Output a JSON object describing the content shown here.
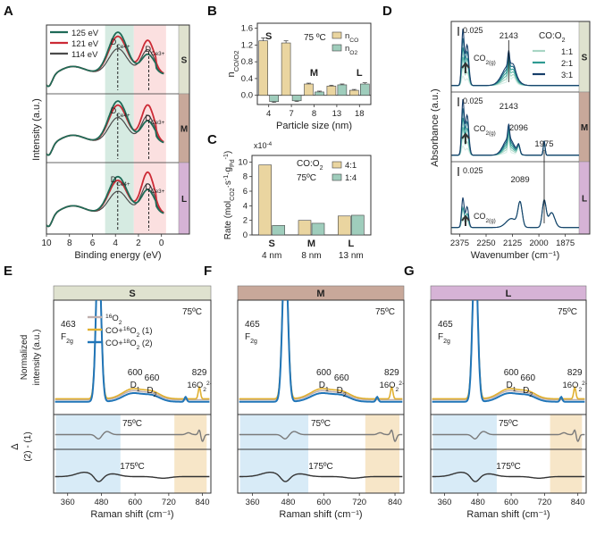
{
  "panels": [
    "A",
    "B",
    "C",
    "D",
    "E",
    "F",
    "G"
  ],
  "colors": {
    "dark_green": "#1f6b57",
    "red": "#cc2a35",
    "gray": "#4a4a4a",
    "tan": "#ead5a0",
    "mint": "#9fcdbc",
    "bar_edge": "#444444",
    "size_S": "#dfe2cf",
    "size_M": "#c8a89a",
    "size_L": "#d6b3d6",
    "shade_green": "#d6ebe2",
    "shade_pink": "#fbe0e0",
    "shade_blue": "#d8ebf7",
    "shade_orange": "#f7e6c8",
    "raman_gray": "#c0b0ae",
    "raman_gold": "#e0b030",
    "raman_blue": "#2075b8"
  },
  "chart_data": [
    {
      "id": "A",
      "type": "line",
      "xlabel": "Binding energy (eV)",
      "ylabel": "Intensity (a.u.)",
      "xticks": [
        10,
        8,
        6,
        4,
        2,
        0
      ],
      "series": [
        {
          "name": "125 eV",
          "color": "#1f6b57"
        },
        {
          "name": "121 eV",
          "color": "#cc2a35"
        },
        {
          "name": "114 eV",
          "color": "#4a4a4a"
        }
      ],
      "rows": [
        "S",
        "M",
        "L"
      ],
      "peak_labels": [
        {
          "main": "D",
          "sub": "Ce4+"
        },
        {
          "main": "D",
          "sub": "Ce3+"
        }
      ]
    },
    {
      "id": "B",
      "type": "bar",
      "xlabel": "Particle size (nm)",
      "ylabel_main": "n",
      "ylabel_sub": "CO/O2",
      "categories": [
        "4",
        "7",
        "8",
        "13",
        "18"
      ],
      "category_group": [
        "S",
        "S",
        "M",
        "L",
        "L"
      ],
      "series": [
        {
          "name": "n_CO",
          "main": "n",
          "sub": "CO",
          "values": [
            1.3,
            1.25,
            0.27,
            0.22,
            0.12
          ],
          "errors": [
            0.07,
            0.05,
            0.02,
            0.02,
            0.02
          ],
          "color": "#ead5a0"
        },
        {
          "name": "n_O2",
          "main": "n",
          "sub": "O2",
          "values": [
            -0.15,
            -0.13,
            0.08,
            0.25,
            0.27
          ],
          "errors": [
            0.02,
            0.02,
            0.02,
            0.02,
            0.03
          ],
          "color": "#9fcdbc"
        }
      ],
      "yticks": [
        "1.6",
        "1.2",
        "0.8",
        "0.4",
        "0.0"
      ],
      "ylim": [
        -0.22,
        1.72
      ],
      "group_labels": [
        {
          "text": "S",
          "category": "4"
        },
        {
          "text": "M",
          "category": "8"
        },
        {
          "text": "L",
          "category": "18"
        }
      ],
      "annotation": "75 ºC"
    },
    {
      "id": "C",
      "type": "bar",
      "ylabel": "Rate (mol",
      "ylabel_sub1": "CO2",
      "ylabel_mid": "·s",
      "ylabel_sup1": "-1",
      "ylabel_mid2": "·g",
      "ylabel_sub2": "Pd",
      "ylabel_sup2": "-1",
      "ylabel_end": ")",
      "exponent_label": "x10",
      "exponent_sup": "-4",
      "categories": [
        "S",
        "M",
        "L"
      ],
      "subcategories": [
        "4 nm",
        "8 nm",
        "13 nm"
      ],
      "series": [
        {
          "name": "4:1",
          "values": [
            9.6,
            2.0,
            2.6
          ],
          "color": "#ead5a0"
        },
        {
          "name": "1:4",
          "values": [
            1.3,
            1.6,
            2.7
          ],
          "color": "#9fcdbc"
        }
      ],
      "yticks": [
        "10",
        "8",
        "6",
        "4",
        "2",
        "0"
      ],
      "ylim": [
        0,
        10.9
      ],
      "legend_title": "CO:O",
      "legend_title_sub": "2",
      "annotation": "75ºC"
    },
    {
      "id": "D",
      "type": "line",
      "xlabel": "Wavenumber (cm⁻¹)",
      "ylabel": "Absorbance (a.u.)",
      "xticks": [
        "2375",
        "2250",
        "2125",
        "2000",
        "1875"
      ],
      "scale_label": "0.025",
      "legend_title": "CO:O",
      "legend_title_sub": "2",
      "series": [
        {
          "name": "1:1",
          "color": "#a8d5c4"
        },
        {
          "name": "2:1",
          "color": "#2f9a92"
        },
        {
          "name": "3:1",
          "color": "#173e6a"
        }
      ],
      "rows": [
        "S",
        "M",
        "L"
      ],
      "peak_labels_S": [
        "2143"
      ],
      "peak_labels_M": [
        "2143",
        "2096",
        "1975"
      ],
      "peak_labels_L": [
        "2089"
      ],
      "co2_label_main": "CO",
      "co2_label_sub": "2(g)"
    },
    {
      "id": "E",
      "type": "line",
      "sample": "S",
      "xlabel": "Raman shift (cm⁻¹)",
      "ylabel_top": "Normalized",
      "ylabel_bottom": "intensity (a.u.)",
      "diff_ylabel": "Δ",
      "diff_ylabel2": "(2) - (1)",
      "xticks": [
        "360",
        "480",
        "600",
        "720",
        "840"
      ],
      "series": [
        {
          "name": "16O2",
          "color": "#c0b0ae"
        },
        {
          "name": "CO+16O2 (1)",
          "color": "#e0b030"
        },
        {
          "name": "CO+18O2 (2)",
          "color": "#2075b8"
        }
      ],
      "peaks": [
        [
          "463",
          "F2g"
        ],
        [
          "600",
          "D1"
        ],
        [
          "660",
          "D2"
        ],
        [
          "829",
          "16O22-"
        ]
      ],
      "temps": [
        "75ºC",
        "75ºC",
        "175ºC"
      ]
    },
    {
      "id": "F",
      "type": "line",
      "sample": "M",
      "xlabel": "Raman shift (cm⁻¹)",
      "xticks": [
        "360",
        "480",
        "600",
        "720",
        "840"
      ],
      "peaks": [
        [
          "465",
          "F2g"
        ],
        [
          "600",
          "D1"
        ],
        [
          "660",
          "D2"
        ],
        [
          "829",
          "16O22-"
        ]
      ],
      "temps": [
        "75ºC",
        "75ºC",
        "175ºC"
      ]
    },
    {
      "id": "G",
      "type": "line",
      "sample": "L",
      "xlabel": "Raman shift (cm⁻¹)",
      "xticks": [
        "360",
        "480",
        "600",
        "720",
        "840"
      ],
      "peaks": [
        [
          "465",
          "F2g"
        ],
        [
          "600",
          "D1"
        ],
        [
          "660",
          "D2"
        ],
        [
          "829",
          "16O22-"
        ]
      ],
      "temps": [
        "75ºC",
        "75ºC",
        "175ºC"
      ]
    }
  ]
}
